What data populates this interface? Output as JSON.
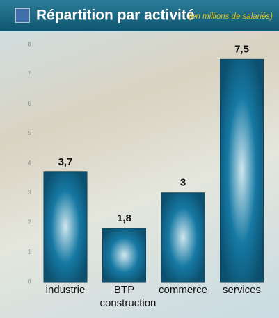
{
  "chart_data": {
    "type": "bar",
    "title": "Répartition par activité",
    "subtitle": "(en millions de salariés)",
    "categories": [
      "industrie",
      "BTP construction",
      "commerce",
      "services"
    ],
    "values": [
      3.7,
      1.8,
      3,
      7.5
    ],
    "value_labels": [
      "3,7",
      "1,8",
      "3",
      "7,5"
    ],
    "color": "#1679a3",
    "ylim": [
      0,
      8
    ],
    "yticks": [
      0,
      1,
      2,
      3,
      4,
      5,
      6,
      7,
      8
    ],
    "grid": false
  }
}
